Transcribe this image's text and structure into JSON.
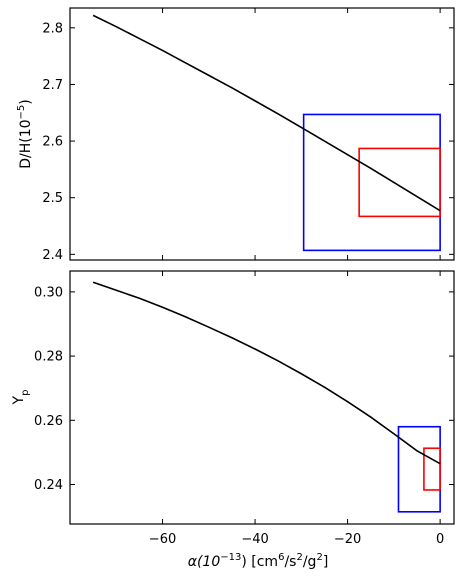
{
  "chart_data": [
    {
      "type": "line",
      "panel": "top",
      "ylabel": "D/H(10",
      "ylabel_sup": "−5",
      "ylabel_suffix": ")",
      "xlim": [
        -80,
        3
      ],
      "ylim": [
        2.39,
        2.835
      ],
      "yticks": [
        2.4,
        2.5,
        2.6,
        2.7,
        2.8
      ],
      "ytick_labels": [
        "2.4",
        "2.5",
        "2.6",
        "2.7",
        "2.8"
      ],
      "series": [
        {
          "color": "#000000",
          "x": [
            -75,
            -70,
            -65,
            -60,
            -55,
            -50,
            -45,
            -40,
            -35,
            -30,
            -25,
            -20,
            -15,
            -10,
            -5,
            0
          ],
          "y": [
            2.822,
            2.802,
            2.781,
            2.76,
            2.738,
            2.716,
            2.694,
            2.671,
            2.648,
            2.624,
            2.6,
            2.576,
            2.552,
            2.527,
            2.502,
            2.477
          ]
        }
      ],
      "boxes": [
        {
          "color": "#0000ff",
          "x": [
            -29.5,
            0
          ],
          "y": [
            2.407,
            2.647
          ]
        },
        {
          "color": "#ff0000",
          "x": [
            -17.5,
            0
          ],
          "y": [
            2.467,
            2.587
          ]
        }
      ]
    },
    {
      "type": "line",
      "panel": "bottom",
      "ylabel": "Y",
      "ylabel_sub": "p",
      "xlabel_prefix": "α(10",
      "xlabel_sup1": "−13",
      "xlabel_mid": ") [cm",
      "xlabel_sup2": "6",
      "xlabel_mid2": "/s",
      "xlabel_sup3": "2",
      "xlabel_mid3": "/g",
      "xlabel_sup4": "2",
      "xlabel_suffix": "]",
      "xlim": [
        -80,
        3
      ],
      "xticks": [
        -60,
        -40,
        -20,
        0
      ],
      "xtick_labels": [
        "−60",
        "−40",
        "−20",
        "0"
      ],
      "ylim": [
        0.2277,
        0.3065
      ],
      "yticks": [
        0.24,
        0.26,
        0.28,
        0.3
      ],
      "ytick_labels": [
        "0.24",
        "0.26",
        "0.28",
        "0.30"
      ],
      "series": [
        {
          "color": "#000000",
          "x": [
            -75,
            -70,
            -65,
            -60,
            -55,
            -50,
            -45,
            -40,
            -35,
            -30,
            -25,
            -20,
            -15,
            -10,
            -5,
            0
          ],
          "y": [
            0.303,
            0.3005,
            0.298,
            0.2952,
            0.2922,
            0.289,
            0.2857,
            0.2822,
            0.2785,
            0.2745,
            0.2703,
            0.2658,
            0.261,
            0.2558,
            0.2505,
            0.2465
          ]
        }
      ],
      "boxes": [
        {
          "color": "#0000ff",
          "x": [
            -9,
            0
          ],
          "y": [
            0.2315,
            0.258
          ]
        },
        {
          "color": "#ff0000",
          "x": [
            -3.5,
            0
          ],
          "y": [
            0.2383,
            0.2513
          ]
        }
      ]
    }
  ]
}
